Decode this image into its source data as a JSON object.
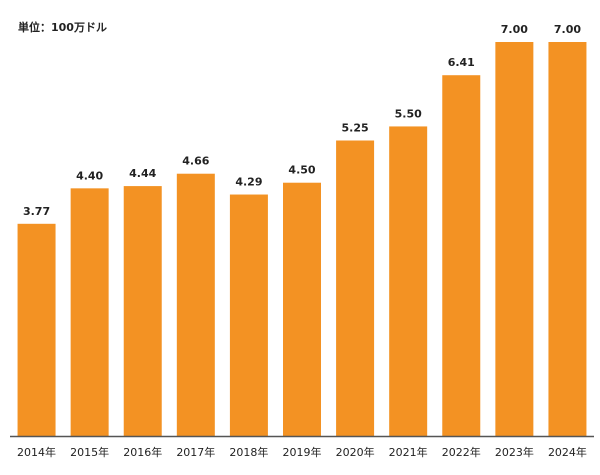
{
  "chart_data": {
    "type": "bar",
    "unit_label": "単位：100万ドル",
    "categories": [
      "2014年",
      "2015年",
      "2016年",
      "2017年",
      "2018年",
      "2019年",
      "2020年",
      "2021年",
      "2022年",
      "2023年",
      "2024年"
    ],
    "values": [
      3.77,
      4.4,
      4.44,
      4.66,
      4.29,
      4.5,
      5.25,
      5.5,
      6.41,
      7.0,
      7.0
    ],
    "value_labels": [
      "3.77",
      "4.40",
      "4.44",
      "4.66",
      "4.29",
      "4.50",
      "5.25",
      "5.50",
      "6.41",
      "7.00",
      "7.00"
    ],
    "ylim": [
      0,
      7.0
    ],
    "grid": false,
    "colors": {
      "bar": "#F39223",
      "axis": "#555555",
      "text": "#222222"
    }
  }
}
